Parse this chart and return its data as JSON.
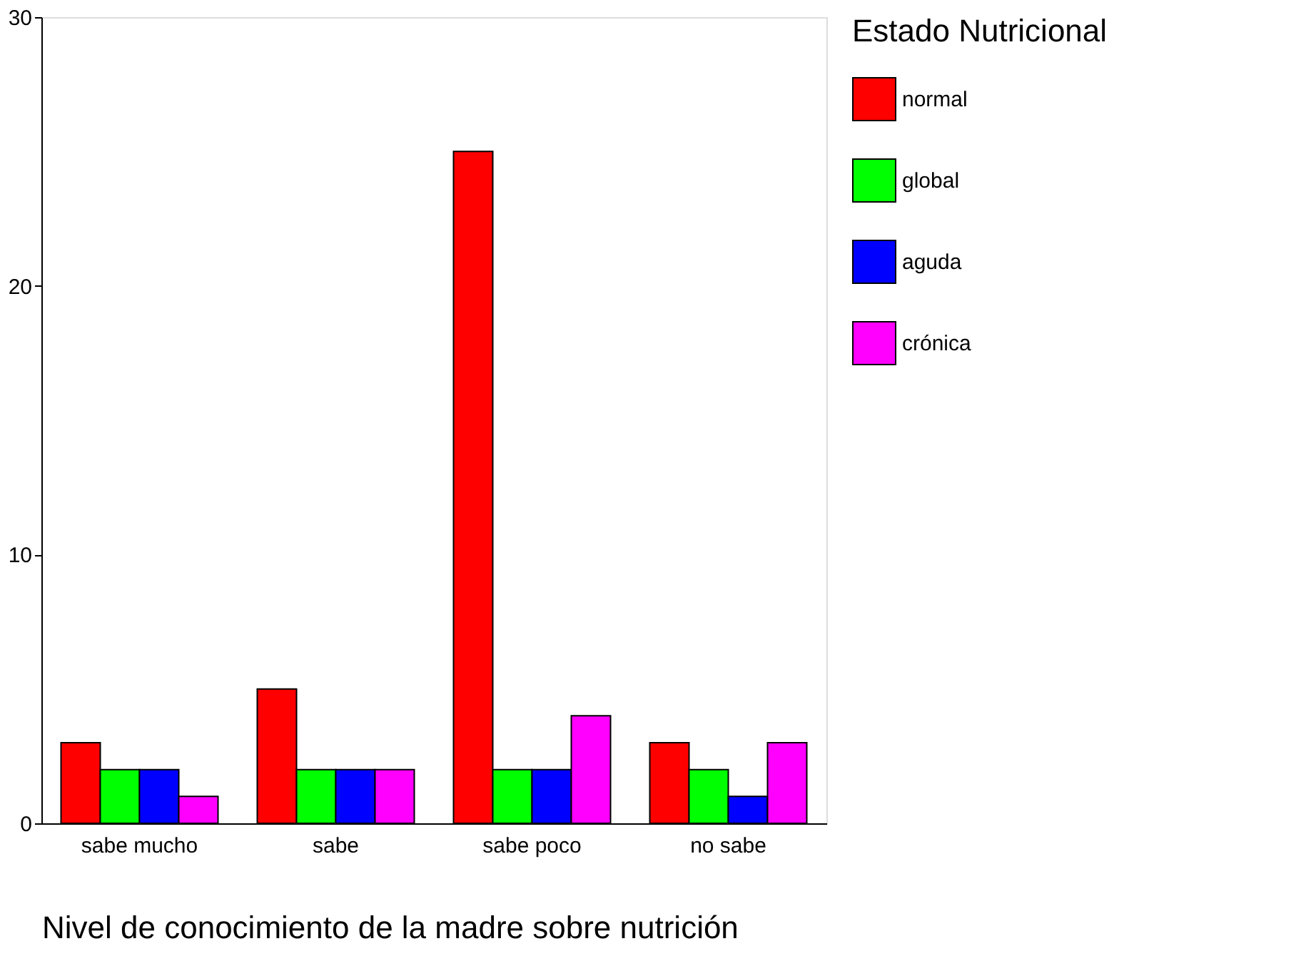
{
  "chart_data": {
    "type": "bar",
    "xlabel": "Nivel de conocimiento de la madre sobre nutrición",
    "legend_title": "Estado Nutricional",
    "categories": [
      "sabe mucho",
      "sabe",
      "sabe poco",
      "no sabe"
    ],
    "series": [
      {
        "name": "normal",
        "color": "#ff0000",
        "values": [
          3,
          5,
          25,
          3
        ]
      },
      {
        "name": "global",
        "color": "#00ff00",
        "values": [
          2,
          2,
          2,
          2
        ]
      },
      {
        "name": "aguda",
        "color": "#0000ff",
        "values": [
          2,
          2,
          2,
          1
        ]
      },
      {
        "name": "crónica",
        "color": "#ff00ff",
        "values": [
          1,
          2,
          4,
          3
        ]
      }
    ],
    "ylim": [
      0,
      30
    ],
    "yticks": [
      0,
      10,
      20,
      30
    ],
    "grid": false,
    "legend": "right"
  }
}
